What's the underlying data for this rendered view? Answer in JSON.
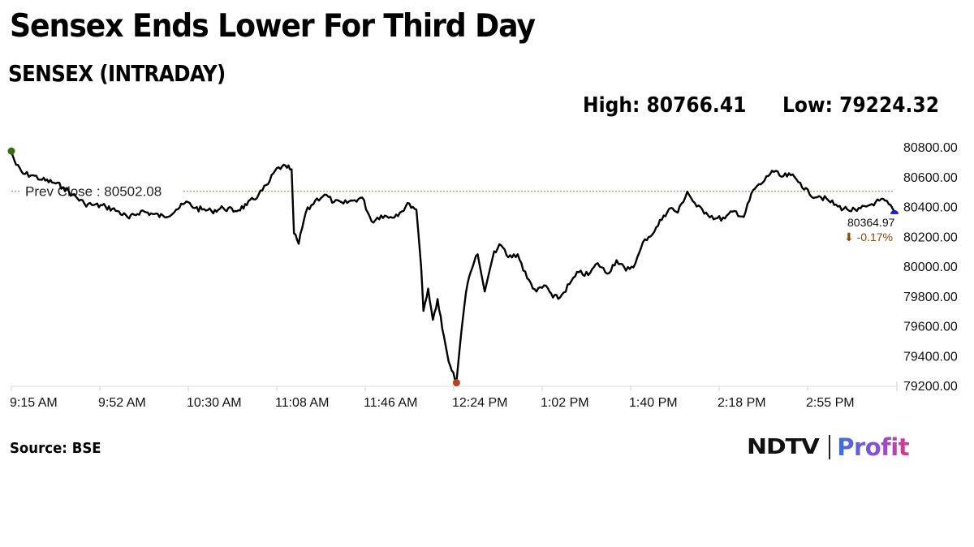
{
  "header": {
    "title": "Sensex Ends Lower For Third Day",
    "subtitle": "SENSEX (INTRADAY)",
    "high_label": "High: 80766.41",
    "low_label": "Low: 79224.32"
  },
  "footer": {
    "source": "Source: BSE",
    "logo_left": "NDTV",
    "logo_right": "Profit"
  },
  "colors": {
    "line": "#000000",
    "prev_close_line": "#a0703a",
    "open_marker": "#3d6b12",
    "low_marker": "#b0441a",
    "close_marker": "#1a1ad0",
    "change_text": "#8a4a12"
  },
  "annotations": {
    "prev_close_label": "Prev Close : 80502.08",
    "last_value": "80364.97",
    "last_change": "⬇ -0.17%"
  },
  "chart_data": {
    "type": "line",
    "title": "SENSEX (INTRADAY)",
    "xlabel": "",
    "ylabel": "",
    "ylim": [
      79200,
      80800
    ],
    "y_ticks": [
      "80800.00",
      "80600.00",
      "80400.00",
      "80200.00",
      "80000.00",
      "79800.00",
      "79600.00",
      "79400.00",
      "79200.00"
    ],
    "x_ticks": [
      "9:15 AM",
      "9:52 AM",
      "10:30 AM",
      "11:08 AM",
      "11:46 AM",
      "12:24 PM",
      "1:02 PM",
      "1:40 PM",
      "2:18 PM",
      "2:55 PM"
    ],
    "grid": false,
    "legend": null,
    "reference_lines": [
      {
        "label": "Prev Close",
        "value": 80502.08
      }
    ],
    "stats": {
      "high": 80766.41,
      "low": 79224.32,
      "prev_close": 80502.08,
      "last": 80364.97,
      "change_pct": -0.17
    },
    "series": [
      {
        "name": "SENSEX",
        "x": [
          "9:15",
          "9:17",
          "9:20",
          "9:24",
          "9:28",
          "9:33",
          "9:37",
          "9:41",
          "9:46",
          "9:50",
          "9:55",
          "10:00",
          "10:05",
          "10:10",
          "10:15",
          "10:20",
          "10:25",
          "10:30",
          "10:33",
          "10:36",
          "10:40",
          "10:45",
          "10:50",
          "10:55",
          "11:00",
          "11:04",
          "11:07",
          "11:10",
          "11:12",
          "11:14",
          "11:15",
          "11:17",
          "11:20",
          "11:24",
          "11:28",
          "11:32",
          "11:36",
          "11:40",
          "11:44",
          "11:48",
          "11:52",
          "11:56",
          "12:00",
          "12:04",
          "12:07",
          "12:09",
          "12:10",
          "12:12",
          "12:14",
          "12:16",
          "12:18",
          "12:20",
          "12:22",
          "12:24",
          "12:26",
          "12:28",
          "12:30",
          "12:33",
          "12:36",
          "12:40",
          "12:43",
          "12:46",
          "12:50",
          "12:54",
          "12:58",
          "13:02",
          "13:05",
          "13:08",
          "13:12",
          "13:16",
          "13:20",
          "13:24",
          "13:28",
          "13:32",
          "13:36",
          "13:40",
          "13:44",
          "13:48",
          "13:52",
          "13:55",
          "13:58",
          "14:02",
          "14:06",
          "14:10",
          "14:14",
          "14:18",
          "14:22",
          "14:26",
          "14:30",
          "14:34",
          "14:38",
          "14:42",
          "14:46",
          "14:50",
          "14:54",
          "14:58",
          "15:02",
          "15:06",
          "15:10",
          "15:14",
          "15:18",
          "15:22",
          "15:26",
          "15:30"
        ],
        "values": [
          80766,
          80680,
          80620,
          80610,
          80580,
          80560,
          80530,
          80480,
          80420,
          80410,
          80400,
          80370,
          80320,
          80370,
          80350,
          80330,
          80380,
          80430,
          80390,
          80380,
          80370,
          80390,
          80370,
          80410,
          80480,
          80550,
          80640,
          80670,
          80660,
          80650,
          80220,
          80150,
          80360,
          80440,
          80480,
          80430,
          80420,
          80440,
          80460,
          80300,
          80340,
          80330,
          80360,
          80420,
          80380,
          80000,
          79700,
          79850,
          79640,
          79780,
          79580,
          79420,
          79300,
          79224,
          79550,
          79820,
          79960,
          80080,
          79830,
          80100,
          80140,
          80060,
          80080,
          79920,
          79830,
          79870,
          79790,
          79790,
          79880,
          79960,
          79940,
          80020,
          79950,
          80040,
          79970,
          80020,
          80180,
          80230,
          80340,
          80390,
          80360,
          80500,
          80400,
          80360,
          80320,
          80320,
          80370,
          80330,
          80510,
          80560,
          80640,
          80600,
          80610,
          80560,
          80480,
          80470,
          80440,
          80400,
          80380,
          80370,
          80400,
          80430,
          80440,
          80365
        ]
      }
    ]
  }
}
